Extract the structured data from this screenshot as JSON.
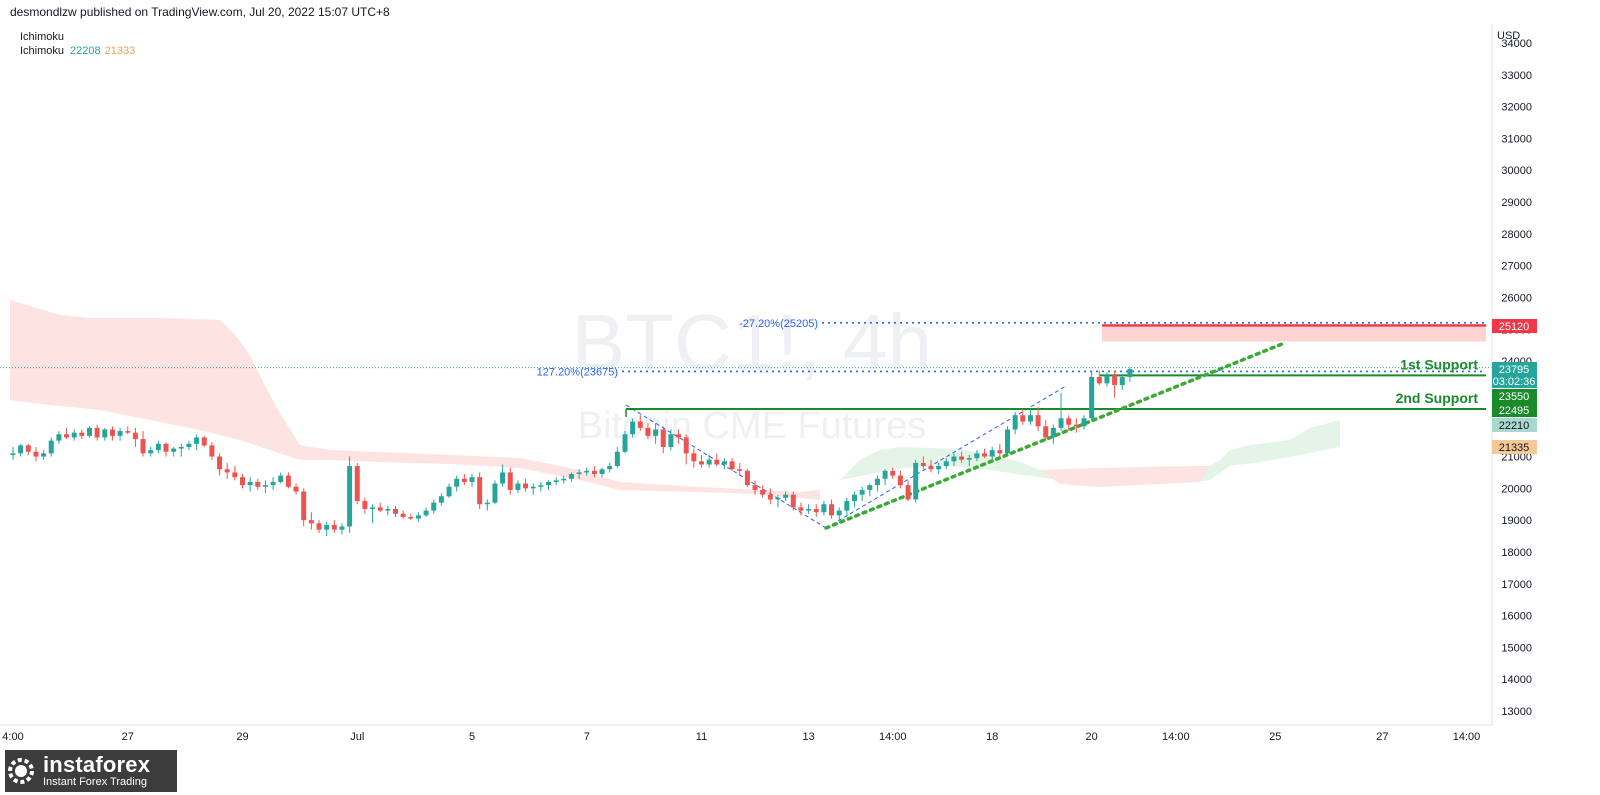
{
  "header": {
    "published": "desmondlzw published on TradingView.com, Jul 20, 2022 15:07 UTC+8"
  },
  "indicators": {
    "title": "Ichimoku",
    "name": "Ichimoku",
    "value1": "22208",
    "value2": "21333"
  },
  "watermark": {
    "symbol": "BTC1!, 4h",
    "description": "Bitcoin CME Futures"
  },
  "logo": {
    "name": "instaforex",
    "tagline": "Instant Forex Trading"
  },
  "colors": {
    "up": "#26a69a",
    "down": "#ef5350",
    "cloud_bear": "#fde3e1",
    "cloud_bull": "#e4f4e6",
    "support": "#1b8a2a",
    "resistance": "#f23645",
    "fib": "#2962ff",
    "trend": "#3aaa35"
  },
  "chart_data": {
    "type": "candlestick",
    "currency": "USD",
    "ylim": [
      12500,
      34600
    ],
    "y_ticks": [
      13000,
      14000,
      15000,
      16000,
      17000,
      18000,
      19000,
      20000,
      21000,
      22000,
      23000,
      24000,
      25000,
      26000,
      27000,
      28000,
      29000,
      30000,
      31000,
      32000,
      33000,
      34000
    ],
    "x_ticks": [
      {
        "label": "4:00",
        "i": 0
      },
      {
        "label": "27",
        "i": 15
      },
      {
        "label": "29",
        "i": 30
      },
      {
        "label": "Jul",
        "i": 45
      },
      {
        "label": "5",
        "i": 60
      },
      {
        "label": "7",
        "i": 75
      },
      {
        "label": "11",
        "i": 90
      },
      {
        "label": "13",
        "i": 104
      },
      {
        "label": "14:00",
        "i": 115
      },
      {
        "label": "18",
        "i": 128
      },
      {
        "label": "20",
        "i": 141
      },
      {
        "label": "14:00",
        "i": 152
      },
      {
        "label": "25",
        "i": 165
      },
      {
        "label": "27",
        "i": 179
      },
      {
        "label": "14:00",
        "i": 190
      }
    ],
    "candles": [
      [
        0,
        21050,
        21300,
        20900,
        21100
      ],
      [
        1,
        21100,
        21400,
        21000,
        21350
      ],
      [
        2,
        21350,
        21400,
        21050,
        21150
      ],
      [
        3,
        21150,
        21300,
        20850,
        21000
      ],
      [
        4,
        21000,
        21200,
        20900,
        21100
      ],
      [
        5,
        21100,
        21600,
        21000,
        21500
      ],
      [
        6,
        21500,
        21800,
        21400,
        21700
      ],
      [
        7,
        21700,
        21900,
        21550,
        21600
      ],
      [
        8,
        21600,
        21850,
        21500,
        21750
      ],
      [
        9,
        21750,
        21850,
        21550,
        21650
      ],
      [
        10,
        21650,
        21950,
        21600,
        21900
      ],
      [
        11,
        21900,
        22000,
        21500,
        21600
      ],
      [
        12,
        21600,
        21900,
        21500,
        21850
      ],
      [
        13,
        21850,
        21950,
        21500,
        21650
      ],
      [
        14,
        21650,
        21900,
        21500,
        21800
      ],
      [
        15,
        21800,
        21950,
        21700,
        21750
      ],
      [
        16,
        21750,
        21900,
        21300,
        21550
      ],
      [
        17,
        21550,
        21800,
        21000,
        21100
      ],
      [
        18,
        21100,
        21300,
        21000,
        21200
      ],
      [
        19,
        21200,
        21500,
        21100,
        21400
      ],
      [
        20,
        21400,
        21450,
        21000,
        21150
      ],
      [
        21,
        21150,
        21300,
        21000,
        21250
      ],
      [
        22,
        21250,
        21400,
        21000,
        21300
      ],
      [
        23,
        21300,
        21500,
        21200,
        21400
      ],
      [
        24,
        21400,
        21700,
        21200,
        21600
      ],
      [
        25,
        21600,
        21650,
        21300,
        21350
      ],
      [
        26,
        21350,
        21450,
        20900,
        21000
      ],
      [
        27,
        21000,
        21100,
        20400,
        20600
      ],
      [
        28,
        20600,
        20800,
        20300,
        20500
      ],
      [
        29,
        20500,
        20700,
        20250,
        20350
      ],
      [
        30,
        20350,
        20450,
        20000,
        20100
      ],
      [
        31,
        20100,
        20350,
        19900,
        20200
      ],
      [
        32,
        20200,
        20300,
        19950,
        20050
      ],
      [
        33,
        20050,
        20250,
        19850,
        20100
      ],
      [
        34,
        20100,
        20350,
        19950,
        20200
      ],
      [
        35,
        20200,
        20500,
        20150,
        20400
      ],
      [
        36,
        20400,
        20500,
        20000,
        20050
      ],
      [
        37,
        20050,
        20150,
        19800,
        19900
      ],
      [
        38,
        19900,
        20000,
        18800,
        19000
      ],
      [
        39,
        19000,
        19250,
        18700,
        18900
      ],
      [
        40,
        18900,
        19000,
        18600,
        18700
      ],
      [
        41,
        18700,
        18950,
        18500,
        18850
      ],
      [
        42,
        18850,
        19000,
        18600,
        18700
      ],
      [
        43,
        18700,
        18900,
        18550,
        18800
      ],
      [
        44,
        18800,
        21000,
        18600,
        20700
      ],
      [
        45,
        20700,
        20800,
        19500,
        19600
      ],
      [
        46,
        19600,
        19700,
        19200,
        19350
      ],
      [
        47,
        19350,
        19500,
        18900,
        19400
      ],
      [
        48,
        19400,
        19550,
        19250,
        19300
      ],
      [
        49,
        19300,
        19450,
        19150,
        19350
      ],
      [
        50,
        19350,
        19450,
        19100,
        19200
      ],
      [
        51,
        19200,
        19300,
        19050,
        19100
      ],
      [
        52,
        19100,
        19200,
        19000,
        19050
      ],
      [
        53,
        19050,
        19250,
        18950,
        19150
      ],
      [
        54,
        19150,
        19400,
        19100,
        19300
      ],
      [
        55,
        19300,
        19650,
        19200,
        19550
      ],
      [
        56,
        19550,
        19850,
        19450,
        19750
      ],
      [
        57,
        19750,
        20150,
        19700,
        20050
      ],
      [
        58,
        20050,
        20400,
        19900,
        20300
      ],
      [
        59,
        20300,
        20450,
        20100,
        20200
      ],
      [
        60,
        20200,
        20450,
        20050,
        20350
      ],
      [
        61,
        20350,
        20500,
        19350,
        19500
      ],
      [
        62,
        19500,
        19650,
        19300,
        19550
      ],
      [
        63,
        19550,
        20250,
        19500,
        20150
      ],
      [
        64,
        20150,
        20750,
        20050,
        20500
      ],
      [
        65,
        20500,
        20650,
        19800,
        19950
      ],
      [
        66,
        19950,
        20250,
        19850,
        20150
      ],
      [
        67,
        20150,
        20300,
        19900,
        20000
      ],
      [
        68,
        20000,
        20150,
        19800,
        20050
      ],
      [
        69,
        20050,
        20200,
        19900,
        20100
      ],
      [
        70,
        20100,
        20250,
        19950,
        20200
      ],
      [
        71,
        20200,
        20350,
        20100,
        20250
      ],
      [
        72,
        20250,
        20400,
        20150,
        20300
      ],
      [
        73,
        20300,
        20500,
        20200,
        20450
      ],
      [
        74,
        20450,
        20600,
        20300,
        20500
      ],
      [
        75,
        20500,
        20650,
        20400,
        20550
      ],
      [
        76,
        20550,
        20700,
        20350,
        20450
      ],
      [
        77,
        20450,
        20650,
        20350,
        20600
      ],
      [
        78,
        20600,
        20800,
        20500,
        20700
      ],
      [
        79,
        20700,
        21300,
        20650,
        21150
      ],
      [
        80,
        21150,
        21800,
        21100,
        21700
      ],
      [
        81,
        21700,
        22200,
        21600,
        22100
      ],
      [
        82,
        22100,
        22300,
        21800,
        21900
      ],
      [
        83,
        21900,
        22050,
        21550,
        21650
      ],
      [
        84,
        21650,
        22050,
        21400,
        21850
      ],
      [
        85,
        21850,
        21950,
        21100,
        21300
      ],
      [
        86,
        21300,
        21850,
        21200,
        21700
      ],
      [
        87,
        21700,
        21850,
        21400,
        21600
      ],
      [
        88,
        21600,
        21700,
        20750,
        21100
      ],
      [
        89,
        21100,
        21250,
        20650,
        20850
      ],
      [
        90,
        20850,
        21050,
        20650,
        20750
      ],
      [
        91,
        20750,
        21050,
        20650,
        20900
      ],
      [
        92,
        20900,
        21100,
        20700,
        20750
      ],
      [
        93,
        20750,
        20950,
        20600,
        20850
      ],
      [
        94,
        20850,
        20950,
        20550,
        20600
      ],
      [
        95,
        20600,
        20800,
        20400,
        20550
      ],
      [
        96,
        20550,
        20600,
        20050,
        20100
      ],
      [
        97,
        20100,
        20250,
        19800,
        19950
      ],
      [
        98,
        19950,
        20100,
        19700,
        19800
      ],
      [
        99,
        19800,
        20000,
        19500,
        19650
      ],
      [
        100,
        19650,
        19800,
        19400,
        19700
      ],
      [
        101,
        19700,
        19900,
        19600,
        19800
      ],
      [
        102,
        19800,
        19900,
        19300,
        19400
      ],
      [
        103,
        19400,
        19550,
        19150,
        19300
      ],
      [
        104,
        19300,
        19500,
        19200,
        19350
      ],
      [
        105,
        19350,
        19500,
        19100,
        19250
      ],
      [
        106,
        19250,
        19600,
        19150,
        19500
      ],
      [
        107,
        19500,
        19650,
        19050,
        19150
      ],
      [
        108,
        19150,
        19400,
        19000,
        19300
      ],
      [
        109,
        19300,
        19700,
        19100,
        19600
      ],
      [
        110,
        19600,
        19900,
        19400,
        19800
      ],
      [
        111,
        19800,
        20050,
        19600,
        19950
      ],
      [
        112,
        19950,
        20150,
        19750,
        20100
      ],
      [
        113,
        20100,
        20400,
        19900,
        20300
      ],
      [
        114,
        20300,
        20600,
        20100,
        20550
      ],
      [
        115,
        20550,
        20650,
        20300,
        20400
      ],
      [
        116,
        20400,
        20550,
        20000,
        20100
      ],
      [
        117,
        20100,
        20250,
        19600,
        19650
      ],
      [
        118,
        19650,
        20900,
        19550,
        20800
      ],
      [
        119,
        20800,
        21000,
        20600,
        20700
      ],
      [
        120,
        20700,
        20900,
        20500,
        20600
      ],
      [
        121,
        20600,
        20800,
        20450,
        20700
      ],
      [
        122,
        20700,
        20950,
        20600,
        20850
      ],
      [
        123,
        20850,
        21100,
        20700,
        21000
      ],
      [
        124,
        21000,
        21150,
        20800,
        20900
      ],
      [
        125,
        20900,
        21050,
        20700,
        20950
      ],
      [
        126,
        20950,
        21200,
        20850,
        21100
      ],
      [
        127,
        21100,
        21250,
        20950,
        21000
      ],
      [
        128,
        21000,
        21300,
        20900,
        21200
      ],
      [
        129,
        21200,
        21400,
        21000,
        21100
      ],
      [
        130,
        21100,
        21950,
        21050,
        21850
      ],
      [
        131,
        21850,
        22400,
        21700,
        22300
      ],
      [
        132,
        22300,
        22500,
        22000,
        22100
      ],
      [
        133,
        22100,
        22500,
        22000,
        22300
      ],
      [
        134,
        22300,
        22550,
        21800,
        21950
      ],
      [
        135,
        21950,
        22150,
        21500,
        21600
      ],
      [
        136,
        21600,
        22000,
        21400,
        21900
      ],
      [
        137,
        21900,
        23000,
        21800,
        22200
      ],
      [
        138,
        22200,
        22300,
        21800,
        22000
      ],
      [
        139,
        22000,
        22200,
        21750,
        21950
      ],
      [
        140,
        21950,
        22300,
        21850,
        22200
      ],
      [
        141,
        22200,
        23700,
        22100,
        23500
      ],
      [
        142,
        23500,
        23700,
        23250,
        23300
      ],
      [
        143,
        23300,
        23650,
        23200,
        23550
      ],
      [
        144,
        23550,
        23700,
        22850,
        23250
      ],
      [
        145,
        23250,
        23600,
        23100,
        23500
      ],
      [
        146,
        23500,
        23800,
        23350,
        23750
      ]
    ],
    "levels": [
      {
        "label": "1st Support",
        "price": 23550
      },
      {
        "label": "2nd Support",
        "price": 22495
      }
    ],
    "resistance": {
      "price": 25120
    },
    "fibonacci": [
      {
        "label": "-27.20%(25205)",
        "price": 25205
      },
      {
        "label": "127.20%(23675)",
        "price": 23675
      }
    ],
    "price_labels": [
      "25120",
      "23795",
      "03:02:36",
      "23550",
      "22495",
      "22210",
      "21335"
    ]
  }
}
